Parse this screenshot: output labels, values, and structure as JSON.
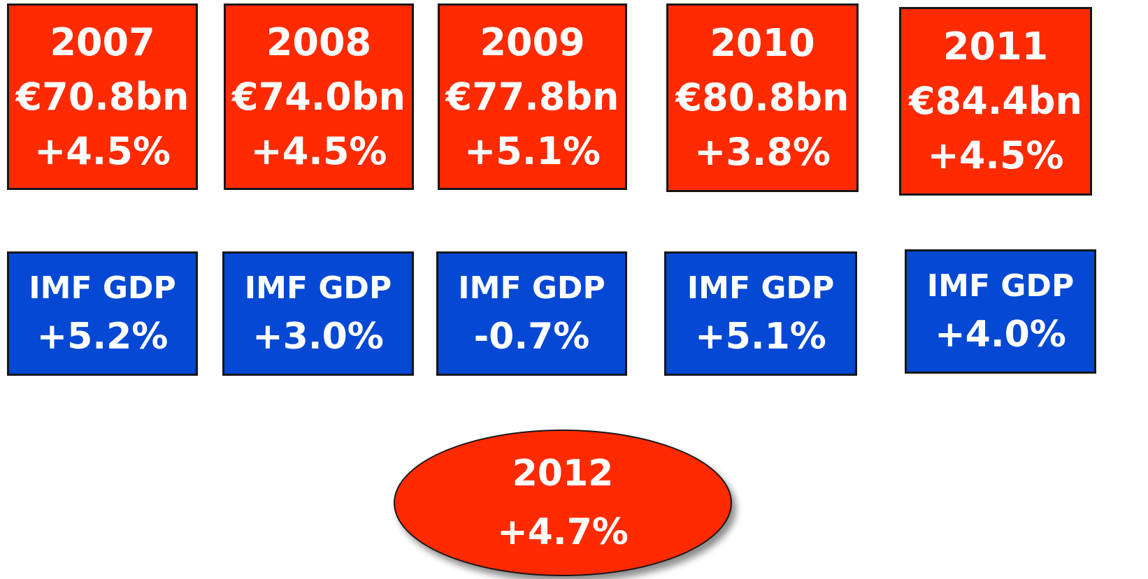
{
  "growth_boxes": [
    {
      "year": "2007",
      "amount": "€70.8bn",
      "change": "+4.5%"
    },
    {
      "year": "2008",
      "amount": "€74.0bn",
      "change": "+4.5%"
    },
    {
      "year": "2009",
      "amount": "€77.8bn",
      "change": "+5.1%"
    },
    {
      "year": "2010",
      "amount": "€80.8bn",
      "change": "+3.8%"
    },
    {
      "year": "2011",
      "amount": "€84.4bn",
      "change": "+4.5%"
    }
  ],
  "gdp_boxes": [
    {
      "label": "IMF GDP",
      "value": "+5.2%"
    },
    {
      "label": "IMF GDP",
      "value": "+3.0%"
    },
    {
      "label": "IMF GDP",
      "value": "-0.7%"
    },
    {
      "label": "IMF GDP",
      "value": "+5.1%"
    },
    {
      "label": "IMF GDP",
      "value": "+4.0%"
    }
  ],
  "forecast": {
    "year": "2012",
    "change": "+4.7%"
  }
}
